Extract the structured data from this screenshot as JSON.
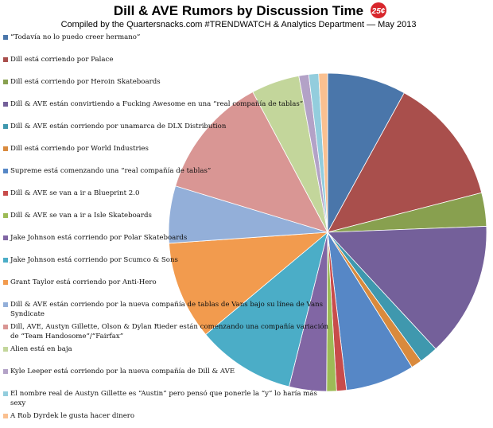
{
  "chart_data": {
    "type": "pie",
    "title": "Dill & AVE Rumors by Discussion Time",
    "badge": "25¢",
    "subtitle": "Compiled by the Quartersnacks.com #TRENDWATCH & Analytics Department — May 2013",
    "categories": [
      "“Todavía no lo puedo creer hermano”",
      "Dill está corriendo por Palace",
      "Dill está corriendo por Heroin Skateboards",
      "Dill & AVE están convirtiendo a Fucking Awesome en una “real compañía de tablas”",
      "Dill & AVE están corriendo por unamarca de DLX Distribution",
      "Dill está corriendo por World Industries",
      "Supreme está comenzando una “real compañía de tablas”",
      "Dill & AVE se van a ir a Blueprint 2.0",
      "Dill & AVE se van a ir a Isle Skateboards",
      "Jake Johnson está corriendo por Polar Skateboards",
      "Jake Johnson está corriendo por Scumco & Sons",
      "Grant Taylor está corriendo por Anti-Hero",
      "Dill & AVE están corriendo por la nueva compañía de tablas de Vans bajo su línea de Vans Syndicate",
      "Dill, AVE, Austyn Gillette, Olson & Dylan Rieder están  comenzando una compañía variación de “Team Handosome”/“Fairfax”",
      "Alien está en baja",
      "Kyle Leeper está corriendo por la nueva compañía de Dill & AVE",
      "El nombre real de Austyn Gillette es “Austin” pero pensó que ponerle la “y” lo haría más sexy",
      "A Rob Dyrdek le gusta hacer dinero"
    ],
    "values": [
      8,
      13,
      3.4,
      13.7,
      1.9,
      1.1,
      7,
      1,
      1,
      3.8,
      10,
      10,
      5.8,
      12.5,
      4.9,
      1,
      1,
      0.9
    ],
    "colors": [
      "#4a76aa",
      "#a94f4c",
      "#88a04f",
      "#74609a",
      "#3f98ae",
      "#d98a3d",
      "#5687c6",
      "#c84c4b",
      "#9dbb56",
      "#8166a4",
      "#4badc7",
      "#f29b4e",
      "#93afd9",
      "#d99694",
      "#c3d69b",
      "#b3a2c7",
      "#93cddd",
      "#fac090"
    ]
  }
}
